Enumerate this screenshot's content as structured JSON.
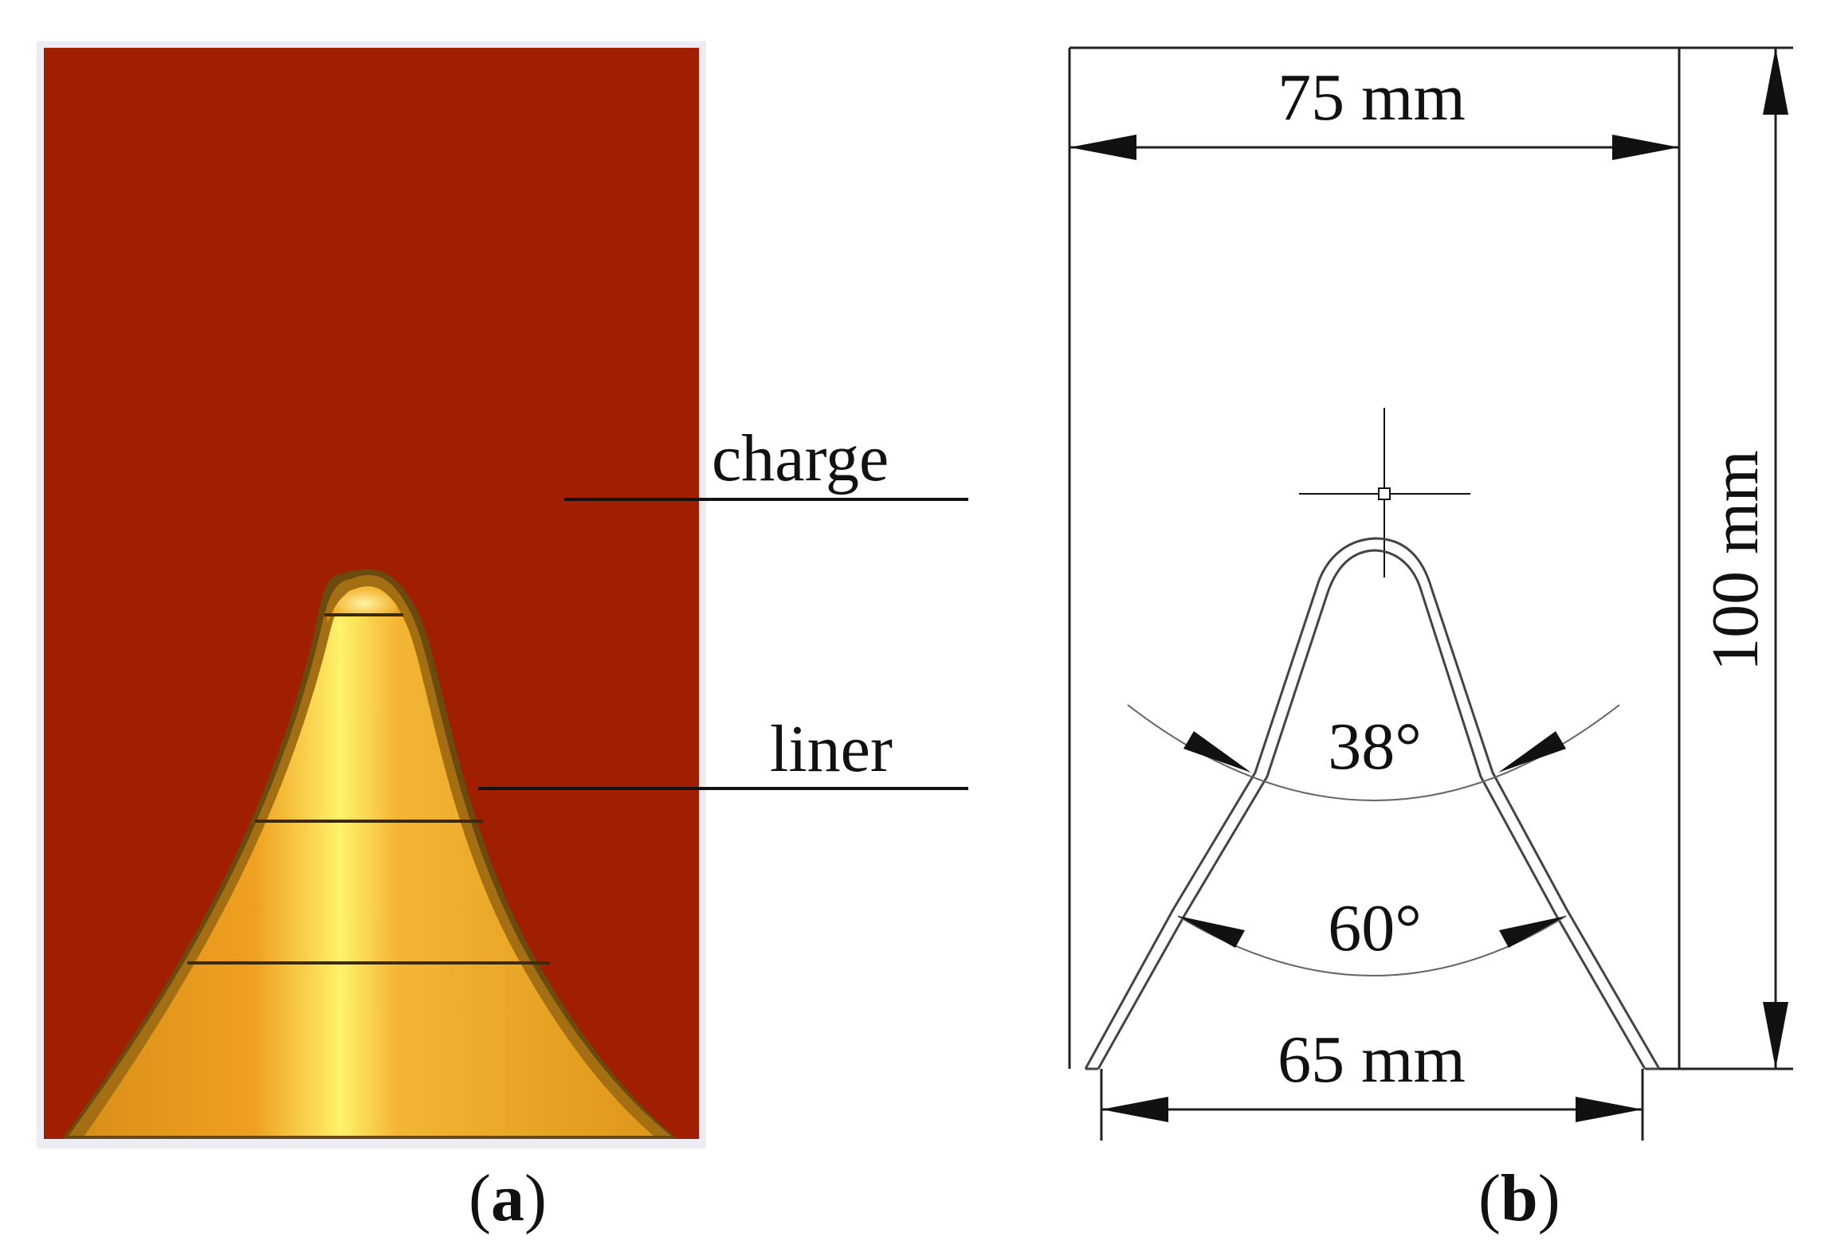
{
  "figure": {
    "panel_a": {
      "caption_prefix": "(",
      "caption_letter": "a",
      "caption_suffix": ")",
      "labels": {
        "charge": "charge",
        "liner": "liner"
      },
      "colors": {
        "charge": "#a01f00",
        "liner_outline": "#6b4a10",
        "liner_band": "#a36f12",
        "liner_fill": "#f0a020",
        "highlight": "#fff26a",
        "background_edge": "#ececf2"
      }
    },
    "panel_b": {
      "caption_prefix": "(",
      "caption_letter": "b",
      "caption_suffix": ")",
      "dimensions": {
        "top_width": "75 mm",
        "bottom_width": "65 mm",
        "height": "100 mm"
      },
      "angles": {
        "upper": "38°",
        "lower": "60°"
      }
    }
  }
}
